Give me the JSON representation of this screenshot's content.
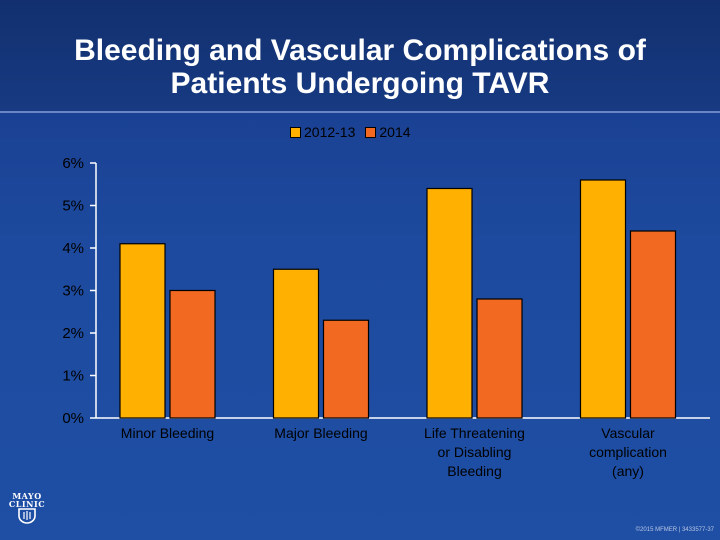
{
  "slide": {
    "title_line1": "Bleeding and Vascular Complications of",
    "title_line2": "Patients Undergoing TAVR",
    "logo_line1": "MAYO",
    "logo_line2": "CLINIC",
    "copyright": "©2015 MFMER | 3433577-37",
    "colors": {
      "background": "#1e4fa5",
      "series_2012_13": "#ffb000",
      "series_2014": "#f26a21",
      "axis_text": "#000000",
      "category_text": "#000000"
    }
  },
  "chart_data": {
    "type": "bar",
    "title": "Bleeding and Vascular Complications of Patients Undergoing TAVR",
    "categories": [
      [
        "Minor Bleeding"
      ],
      [
        "Major Bleeding"
      ],
      [
        "Life Threatening",
        "or Disabling",
        "Bleeding"
      ],
      [
        "Vascular",
        "complication",
        "(any)"
      ]
    ],
    "series": [
      {
        "name": "2012-13",
        "color": "#ffb000",
        "values": [
          4.1,
          3.5,
          5.4,
          5.6
        ]
      },
      {
        "name": "2014",
        "color": "#f26a21",
        "values": [
          3.0,
          2.3,
          2.8,
          4.4
        ]
      }
    ],
    "y_ticks": [
      "0%",
      "1%",
      "2%",
      "3%",
      "4%",
      "5%",
      "6%"
    ],
    "ylim": [
      0,
      6
    ],
    "legend_position": "top-center",
    "grid": false
  }
}
